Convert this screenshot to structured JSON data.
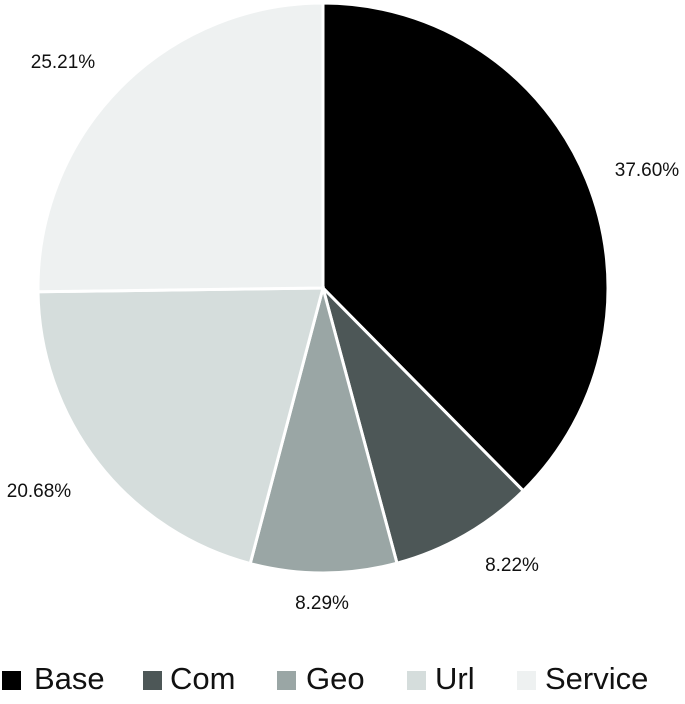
{
  "chart_data": {
    "type": "pie",
    "title": "",
    "legend_position": "bottom",
    "start_angle_deg": 0,
    "direction": "clockwise",
    "slices": [
      {
        "name": "Base",
        "value": 37.6,
        "label": "37.60%",
        "color": "#000000"
      },
      {
        "name": "Com",
        "value": 8.22,
        "label": "8.22%",
        "color": "#4d5757"
      },
      {
        "name": "Geo",
        "value": 8.29,
        "label": "8.29%",
        "color": "#9aa6a5"
      },
      {
        "name": "Url",
        "value": 20.68,
        "label": "20.68%",
        "color": "#d5dddc"
      },
      {
        "name": "Service",
        "value": 25.21,
        "label": "25.21%",
        "color": "#eef1f1"
      }
    ]
  }
}
